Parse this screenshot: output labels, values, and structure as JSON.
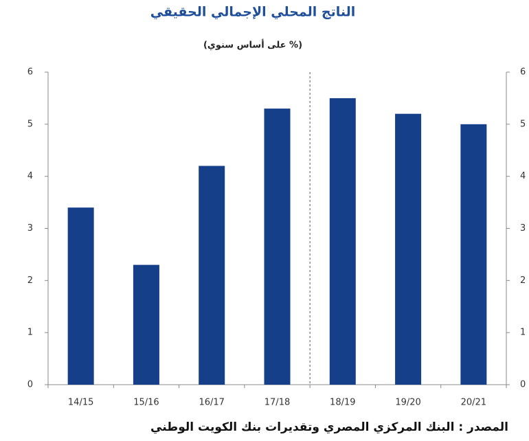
{
  "chart_data": {
    "type": "bar",
    "title": "الناتج المحلي الإجمالي الحقيقي",
    "subtitle": "(% على أساس سنوي)",
    "source": "المصدر :  البنك المركزي المصري وتقديرات بنك الكويت الوطني",
    "categories": [
      "14/15",
      "15/16",
      "16/17",
      "17/18",
      "18/19",
      "19/20",
      "20/21"
    ],
    "values": [
      3.4,
      2.3,
      4.2,
      5.3,
      5.5,
      5.2,
      5.0
    ],
    "color": "#163f8a",
    "ylim": [
      0,
      6
    ],
    "yticks": [
      0,
      1,
      2,
      3,
      4,
      5,
      6
    ],
    "y2lim": [
      0,
      6
    ],
    "y2ticks": [
      0,
      1,
      2,
      3,
      4,
      5,
      6
    ]
  }
}
